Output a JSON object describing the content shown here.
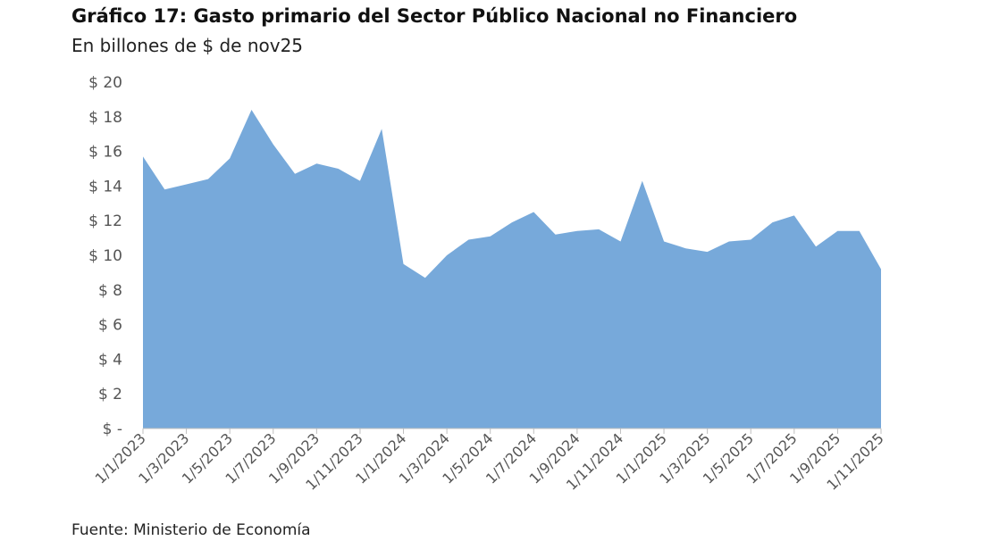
{
  "chart_data": {
    "type": "area",
    "title": "Gráfico 17: Gasto primario del Sector Público Nacional no Financiero",
    "subtitle": "En billones de $ de nov25",
    "source": "Fuente: Ministerio de Economía",
    "x": [
      "1/1/2023",
      "1/2/2023",
      "1/3/2023",
      "1/4/2023",
      "1/5/2023",
      "1/6/2023",
      "1/7/2023",
      "1/8/2023",
      "1/9/2023",
      "1/10/2023",
      "1/11/2023",
      "1/12/2023",
      "1/1/2024",
      "1/2/2024",
      "1/3/2024",
      "1/4/2024",
      "1/5/2024",
      "1/6/2024",
      "1/7/2024",
      "1/8/2024",
      "1/9/2024",
      "1/10/2024",
      "1/11/2024",
      "1/12/2024",
      "1/1/2025",
      "1/2/2025",
      "1/3/2025",
      "1/4/2025",
      "1/5/2025",
      "1/6/2025",
      "1/7/2025",
      "1/8/2025",
      "1/9/2025",
      "1/10/2025",
      "1/11/2025"
    ],
    "x_tick_labels": [
      "1/1/2023",
      "1/3/2023",
      "1/5/2023",
      "1/7/2023",
      "1/9/2023",
      "1/11/2023",
      "1/1/2024",
      "1/3/2024",
      "1/5/2024",
      "1/7/2024",
      "1/9/2024",
      "1/11/2024",
      "1/1/2025",
      "1/3/2025",
      "1/5/2025",
      "1/7/2025",
      "1/9/2025",
      "1/11/2025"
    ],
    "series": [
      {
        "values": [
          15.7,
          13.8,
          14.1,
          14.4,
          15.6,
          18.4,
          16.4,
          14.7,
          15.3,
          15.0,
          14.3,
          17.3,
          9.5,
          8.7,
          10.0,
          10.9,
          11.1,
          11.9,
          12.5,
          11.2,
          11.4,
          11.5,
          10.8,
          14.3,
          10.8,
          10.4,
          10.2,
          10.8,
          10.9,
          11.9,
          12.3,
          10.5,
          11.4,
          11.4,
          9.2
        ]
      }
    ],
    "y_tick_labels": [
      "$ -",
      "$ 2",
      "$ 4",
      "$ 6",
      "$ 8",
      "$ 10",
      "$ 12",
      "$ 14",
      "$ 16",
      "$ 18",
      "$ 20"
    ],
    "ylim": [
      0,
      20
    ],
    "y_step": 2,
    "grid": false,
    "legend": "none",
    "colors": {
      "area": "#77a9da",
      "axis": "#bfbfbf",
      "tick_text": "#555555"
    }
  }
}
